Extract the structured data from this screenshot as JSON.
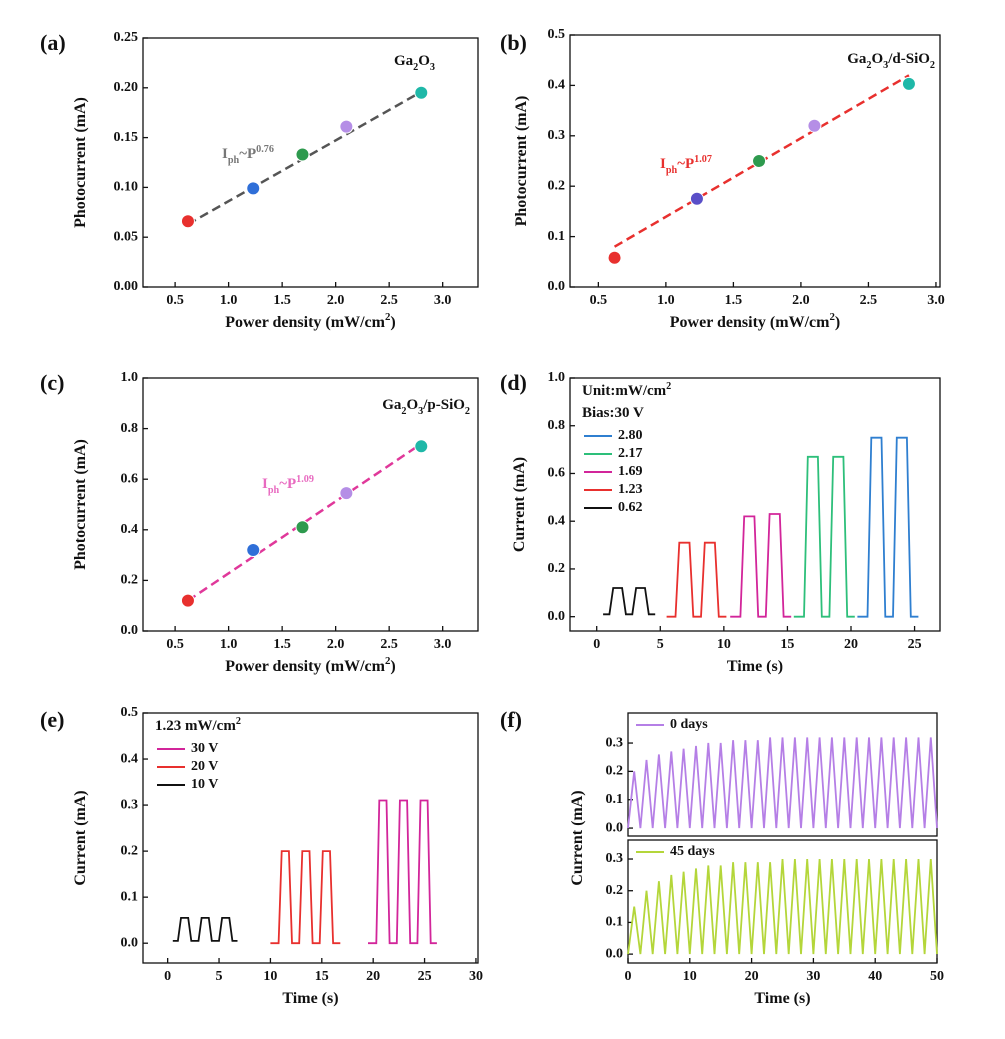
{
  "chart_data": [
    {
      "type": "scatter",
      "panel_label": "(a)",
      "x_label": [
        {
          "text": "Power density (mW/cm"
        },
        {
          "text": "2",
          "script": "sup"
        },
        {
          "text": ")"
        }
      ],
      "y_label": [
        {
          "text": "Photocurrent (mA)"
        }
      ],
      "x": [
        0.62,
        1.23,
        1.69,
        2.1,
        2.8
      ],
      "values": [
        0.066,
        0.099,
        0.133,
        0.161,
        0.195
      ],
      "colors": [
        "#e8302e",
        "#2f6fd8",
        "#2e9a4e",
        "#b58ee6",
        "#1fb8a8"
      ],
      "fit": {
        "x": [
          0.62,
          2.8
        ],
        "values": [
          0.063,
          0.196
        ],
        "color": "#555555"
      },
      "annotations": [
        {
          "color": "#111111",
          "parts": [
            {
              "text": "Ga"
            },
            {
              "text": "2",
              "script": "sub"
            },
            {
              "text": "O"
            },
            {
              "text": "3",
              "script": "sub"
            }
          ]
        },
        {
          "color": "#777777",
          "parts": [
            {
              "text": "I"
            },
            {
              "text": "ph",
              "script": "sub"
            },
            {
              "text": "~P"
            },
            {
              "text": "0.76",
              "script": "sup"
            }
          ]
        }
      ],
      "xlim": [
        0.2,
        3.33
      ],
      "xticks": [
        0.5,
        {
          "value": 1,
          "label": "1.0"
        },
        1.5,
        {
          "value": 2,
          "label": "2.0"
        },
        2.5,
        {
          "value": 3,
          "label": "3.0"
        }
      ],
      "ylim": [
        0,
        0.25
      ],
      "yticks": [
        {
          "value": 0,
          "label": "0.00"
        },
        0.05,
        {
          "value": 0.1,
          "label": "0.10"
        },
        0.15,
        {
          "value": 0.2,
          "label": "0.20"
        },
        0.25
      ]
    },
    {
      "type": "scatter",
      "panel_label": "(b)",
      "x_label": [
        {
          "text": "Power density (mW/cm"
        },
        {
          "text": "2",
          "script": "sup"
        },
        {
          "text": ")"
        }
      ],
      "y_label": [
        {
          "text": "Photocurrent (mA)"
        }
      ],
      "x": [
        0.62,
        1.23,
        1.69,
        2.1,
        2.8
      ],
      "values": [
        0.058,
        0.175,
        0.25,
        0.32,
        0.403
      ],
      "colors": [
        "#e8302e",
        "#5a4fc8",
        "#2e9a4e",
        "#b58ee6",
        "#1fb8a8"
      ],
      "fit": {
        "x": [
          0.62,
          2.8
        ],
        "values": [
          0.08,
          0.42
        ],
        "color": "#e8302e"
      },
      "annotations": [
        {
          "color": "#111111",
          "parts": [
            {
              "text": "Ga"
            },
            {
              "text": "2",
              "script": "sub"
            },
            {
              "text": "O"
            },
            {
              "text": "3",
              "script": "sub"
            },
            {
              "text": "/d-SiO"
            },
            {
              "text": "2",
              "script": "sub"
            }
          ]
        },
        {
          "color": "#e8302e",
          "parts": [
            {
              "text": "I"
            },
            {
              "text": "ph",
              "script": "sub"
            },
            {
              "text": "~P"
            },
            {
              "text": "1.07",
              "script": "sup"
            }
          ]
        }
      ],
      "xlim": [
        0.29,
        3.03
      ],
      "xticks": [
        0.5,
        {
          "value": 1,
          "label": "1.0"
        },
        1.5,
        {
          "value": 2,
          "label": "2.0"
        },
        2.5,
        {
          "value": 3,
          "label": "3.0"
        }
      ],
      "ylim": [
        0,
        0.5
      ],
      "yticks": [
        {
          "value": 0,
          "label": "0.0"
        },
        0.1,
        0.2,
        0.3,
        0.4,
        0.5
      ]
    },
    {
      "type": "scatter",
      "panel_label": "(c)",
      "x_label": [
        {
          "text": "Power density (mW/cm"
        },
        {
          "text": "2",
          "script": "sup"
        },
        {
          "text": ")"
        }
      ],
      "y_label": [
        {
          "text": "Photocurrent (mA)"
        }
      ],
      "x": [
        0.62,
        1.23,
        1.69,
        2.1,
        2.8
      ],
      "values": [
        0.12,
        0.32,
        0.41,
        0.545,
        0.73
      ],
      "colors": [
        "#e8302e",
        "#2f6fd8",
        "#2e9a4e",
        "#b58ee6",
        "#1fb8a8"
      ],
      "fit": {
        "x": [
          0.62,
          2.8
        ],
        "values": [
          0.12,
          0.74
        ],
        "color": "#e0389a"
      },
      "annotations": [
        {
          "color": "#111111",
          "parts": [
            {
              "text": "Ga"
            },
            {
              "text": "2",
              "script": "sub"
            },
            {
              "text": "O"
            },
            {
              "text": "3",
              "script": "sub"
            },
            {
              "text": "/p-SiO"
            },
            {
              "text": "2",
              "script": "sub"
            }
          ]
        },
        {
          "color": "#e86ac0",
          "parts": [
            {
              "text": "I"
            },
            {
              "text": "ph",
              "script": "sub"
            },
            {
              "text": "~P"
            },
            {
              "text": "1.09",
              "script": "sup"
            }
          ]
        }
      ],
      "xlim": [
        0.2,
        3.33
      ],
      "xticks": [
        0.5,
        {
          "value": 1,
          "label": "1.0"
        },
        1.5,
        {
          "value": 2,
          "label": "2.0"
        },
        2.5,
        {
          "value": 3,
          "label": "3.0"
        }
      ],
      "ylim": [
        0,
        1
      ],
      "yticks": [
        {
          "value": 0,
          "label": "0.0"
        },
        0.2,
        0.4,
        0.6,
        0.8,
        {
          "value": 1,
          "label": "1.0"
        }
      ]
    },
    {
      "type": "line",
      "panel_label": "(d)",
      "x_label": [
        {
          "text": "Time (s)"
        }
      ],
      "y_label": [
        {
          "text": "Current (mA)"
        }
      ],
      "legend_header": [
        [
          {
            "text": "Unit:mW/cm"
          },
          {
            "text": "2",
            "script": "sup"
          }
        ],
        [
          {
            "text": "Bias:30 V"
          }
        ]
      ],
      "series": [
        {
          "name": "2.80",
          "color": "#2f7fd0",
          "x": [
            20.5,
            21.3,
            21.6,
            22.4,
            22.7,
            23.3,
            23.6,
            24.4,
            24.7,
            25.3
          ],
          "values": [
            0,
            0,
            0.75,
            0.75,
            0,
            0,
            0.75,
            0.75,
            0,
            0
          ]
        },
        {
          "name": "2.17",
          "color": "#2dbf7a",
          "x": [
            15.5,
            16.3,
            16.6,
            17.4,
            17.7,
            18.3,
            18.6,
            19.4,
            19.7,
            20.3
          ],
          "values": [
            0,
            0,
            0.67,
            0.67,
            0,
            0,
            0.67,
            0.67,
            0,
            0
          ]
        },
        {
          "name": "1.69",
          "color": "#d2259a",
          "x": [
            10.5,
            11.3,
            11.6,
            12.4,
            12.7,
            13.3,
            13.6,
            14.4,
            14.7,
            15.3
          ],
          "values": [
            0,
            0,
            0.42,
            0.42,
            0,
            0,
            0.43,
            0.43,
            0,
            0
          ]
        },
        {
          "name": "1.23",
          "color": "#e8302e",
          "x": [
            5.5,
            6.2,
            6.5,
            7.3,
            7.6,
            8.2,
            8.5,
            9.3,
            9.6,
            10.2
          ],
          "values": [
            0,
            0,
            0.31,
            0.31,
            0,
            0,
            0.31,
            0.31,
            0,
            0
          ]
        },
        {
          "name": "0.62",
          "color": "#111111",
          "x": [
            0.5,
            1.0,
            1.3,
            2.0,
            2.3,
            2.8,
            3.1,
            3.8,
            4.1,
            4.6
          ],
          "values": [
            0.01,
            0.01,
            0.12,
            0.12,
            0.01,
            0.01,
            0.12,
            0.12,
            0.01,
            0.01
          ]
        }
      ],
      "xlim": [
        -2.1,
        27
      ],
      "xticks": [
        0,
        5,
        10,
        15,
        20,
        25
      ],
      "ylim": [
        -0.06,
        1
      ],
      "yticks": [
        {
          "value": 0,
          "label": "0.0"
        },
        0.2,
        0.4,
        0.6,
        0.8,
        {
          "value": 1,
          "label": "1.0"
        }
      ]
    },
    {
      "type": "line",
      "panel_label": "(e)",
      "x_label": [
        {
          "text": "Time (s)"
        }
      ],
      "y_label": [
        {
          "text": "Current (mA)"
        }
      ],
      "legend_header": [
        [
          {
            "text": "1.23 mW/cm"
          },
          {
            "text": "2",
            "script": "sup"
          }
        ]
      ],
      "series": [
        {
          "name": "30 V",
          "color": "#d2259a",
          "x": [
            19.5,
            20.3,
            20.6,
            21.3,
            21.6,
            22.3,
            22.6,
            23.3,
            23.6,
            24.3,
            24.6,
            25.3,
            25.6,
            26.2
          ],
          "values": [
            0,
            0,
            0.31,
            0.31,
            0,
            0,
            0.31,
            0.31,
            0,
            0,
            0.31,
            0.31,
            0,
            0
          ]
        },
        {
          "name": "20 V",
          "color": "#e8302e",
          "x": [
            10,
            10.8,
            11.1,
            11.8,
            12.1,
            12.8,
            13.1,
            13.8,
            14.1,
            14.8,
            15.1,
            15.8,
            16.1,
            16.8
          ],
          "values": [
            0,
            0,
            0.2,
            0.2,
            0,
            0,
            0.2,
            0.2,
            0,
            0,
            0.2,
            0.2,
            0,
            0
          ]
        },
        {
          "name": "10 V",
          "color": "#111111",
          "x": [
            0.5,
            1.0,
            1.3,
            2.0,
            2.3,
            3.0,
            3.3,
            4.0,
            4.3,
            5.0,
            5.3,
            6.0,
            6.3,
            6.8
          ],
          "values": [
            0.005,
            0.005,
            0.055,
            0.055,
            0.005,
            0.005,
            0.055,
            0.055,
            0.005,
            0.005,
            0.055,
            0.055,
            0.005,
            0.005
          ]
        }
      ],
      "xlim": [
        -2.4,
        30.2
      ],
      "xticks": [
        0,
        5,
        10,
        15,
        20,
        25,
        30
      ],
      "ylim": [
        -0.043,
        0.5
      ],
      "yticks": [
        {
          "value": 0,
          "label": "0.0"
        },
        0.1,
        0.2,
        0.3,
        0.4,
        0.5
      ]
    },
    {
      "type": "stacked-line",
      "panel_label": "(f)",
      "x_label": [
        {
          "text": "Time (s)"
        }
      ],
      "y_label": [
        {
          "text": "Current (mA)"
        }
      ],
      "xlim": [
        0,
        50
      ],
      "xticks": [
        0,
        10,
        20,
        30,
        40,
        50
      ],
      "panels": [
        {
          "ylim": [
            -0.028,
            0.406
          ],
          "yticks": [
            {
              "value": 0,
              "label": "0.0"
            },
            0.1,
            0.2,
            0.3
          ],
          "series": [
            {
              "name": "0 days",
              "color": "#b57fe6",
              "x": [
                0,
                1,
                2,
                3,
                4,
                5,
                6,
                7,
                8,
                9,
                10,
                11,
                12,
                13,
                14,
                15,
                16,
                17,
                18,
                19,
                20,
                21,
                22,
                23,
                24,
                25,
                26,
                27,
                28,
                29,
                30,
                31,
                32,
                33,
                34,
                35,
                36,
                37,
                38,
                39,
                40,
                41,
                42,
                43,
                44,
                45,
                46,
                47,
                48,
                49,
                50
              ],
              "values": [
                0,
                0.2,
                0,
                0.24,
                0,
                0.26,
                0,
                0.27,
                0,
                0.28,
                0,
                0.29,
                0,
                0.3,
                0,
                0.3,
                0,
                0.31,
                0,
                0.31,
                0,
                0.31,
                0,
                0.32,
                0,
                0.32,
                0,
                0.32,
                0,
                0.32,
                0,
                0.32,
                0,
                0.32,
                0,
                0.32,
                0,
                0.32,
                0,
                0.32,
                0,
                0.32,
                0,
                0.32,
                0,
                0.32,
                0,
                0.32,
                0,
                0.32,
                0
              ]
            }
          ]
        },
        {
          "ylim": [
            -0.028,
            0.36
          ],
          "yticks": [
            {
              "value": 0,
              "label": "0.0"
            },
            0.1,
            0.2,
            0.3
          ],
          "series": [
            {
              "name": "45 days",
              "color": "#b4d63a",
              "x": [
                0,
                1,
                2,
                3,
                4,
                5,
                6,
                7,
                8,
                9,
                10,
                11,
                12,
                13,
                14,
                15,
                16,
                17,
                18,
                19,
                20,
                21,
                22,
                23,
                24,
                25,
                26,
                27,
                28,
                29,
                30,
                31,
                32,
                33,
                34,
                35,
                36,
                37,
                38,
                39,
                40,
                41,
                42,
                43,
                44,
                45,
                46,
                47,
                48,
                49,
                50
              ],
              "values": [
                0,
                0.15,
                0,
                0.2,
                0,
                0.23,
                0,
                0.25,
                0,
                0.26,
                0,
                0.27,
                0,
                0.28,
                0,
                0.28,
                0,
                0.29,
                0,
                0.29,
                0,
                0.29,
                0,
                0.29,
                0,
                0.3,
                0,
                0.3,
                0,
                0.3,
                0,
                0.3,
                0,
                0.3,
                0,
                0.3,
                0,
                0.3,
                0,
                0.3,
                0,
                0.3,
                0,
                0.3,
                0,
                0.3,
                0,
                0.3,
                0,
                0.3,
                0
              ]
            }
          ]
        }
      ]
    }
  ]
}
